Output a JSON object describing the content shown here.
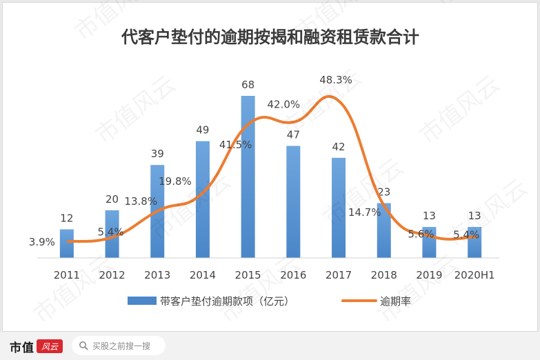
{
  "chart_data": {
    "type": "bar+line",
    "title": "代客户垫付的逾期按揭和融资租赁款合计",
    "categories": [
      "2011",
      "2012",
      "2013",
      "2014",
      "2015",
      "2016",
      "2017",
      "2018",
      "2019",
      "2020H1"
    ],
    "bar_series": {
      "name": "带客户垫付逾期款项（亿元）",
      "values": [
        12,
        20,
        39,
        49,
        68,
        47,
        42,
        23,
        13,
        13
      ],
      "labels": [
        "12",
        "20",
        "39",
        "49",
        "68",
        "47",
        "42",
        "23",
        "13",
        "13"
      ],
      "color": "#4a86c8"
    },
    "line_series": {
      "name": "逾期率",
      "values": [
        3.9,
        5.4,
        13.8,
        19.8,
        41.5,
        42.0,
        48.3,
        14.7,
        5.6,
        5.4
      ],
      "labels": [
        "3.9%",
        "5.4%",
        "13.8%",
        "19.8%",
        "41.5%",
        "42.0%",
        "48.3%",
        "14.7%",
        "5.6%",
        "5.4%"
      ],
      "color": "#ed7d31"
    },
    "legend_position": "bottom",
    "grid": false
  },
  "watermark": {
    "text": "市值风云"
  },
  "footer": {
    "brand_text": "市值",
    "brand_mark": "风云",
    "search_placeholder": "买股之前搜一搜",
    "search_icon": "search-icon"
  }
}
